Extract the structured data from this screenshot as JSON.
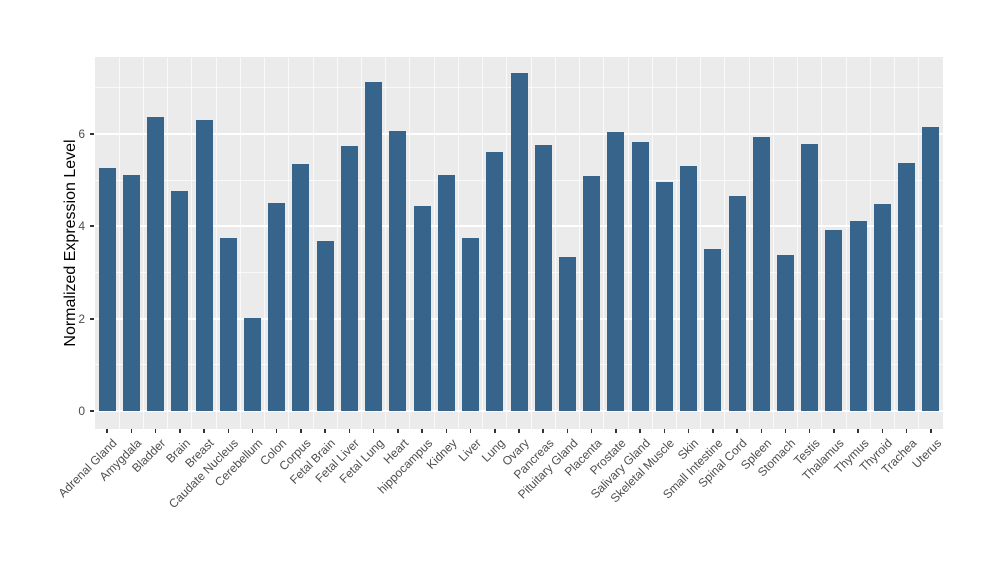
{
  "chart_data": {
    "type": "bar",
    "title": "",
    "xlabel": "",
    "ylabel": "Normalized Expression Level",
    "categories": [
      "Adrenal Gland",
      "Amygdala",
      "Bladder",
      "Brain",
      "Breast",
      "Caudate Nucleus",
      "Cerebellum",
      "Colon",
      "Corpus",
      "Fetal Brain",
      "Fetal Liver",
      "Fetal Lung",
      "Heart",
      "hippocampus",
      "Kidney",
      "Liver",
      "Lung",
      "Ovary",
      "Pancreas",
      "Pituitary Gland",
      "Placenta",
      "Prostate",
      "Salivary Gland",
      "Skeletal Muscle",
      "Skin",
      "Small Intestine",
      "Spinal Cord",
      "Spleen",
      "Stomach",
      "Testis",
      "Thalamus",
      "Thymus",
      "Thyroid",
      "Trachea",
      "Uterus"
    ],
    "values": [
      5.27,
      5.11,
      6.36,
      4.77,
      6.31,
      3.75,
      2.01,
      4.5,
      5.36,
      3.68,
      5.75,
      7.12,
      6.06,
      4.43,
      5.11,
      3.74,
      5.6,
      7.31,
      5.76,
      3.34,
      5.09,
      6.05,
      5.83,
      4.95,
      5.31,
      3.51,
      4.66,
      5.93,
      3.38,
      5.78,
      3.93,
      4.11,
      4.48,
      5.37,
      6.15
    ],
    "ylim": [
      0,
      7.65
    ],
    "yticks": [
      0,
      2,
      4,
      6
    ],
    "minor_gridlines": [
      1,
      3,
      5,
      7
    ],
    "grid": true,
    "legend": false,
    "bar_color": "#36648B",
    "panel_background": "#EBEBEB",
    "gridline_color": "#FFFFFF",
    "axis_text_color": "#4D4D4D",
    "axis_title_color": "#000000"
  }
}
